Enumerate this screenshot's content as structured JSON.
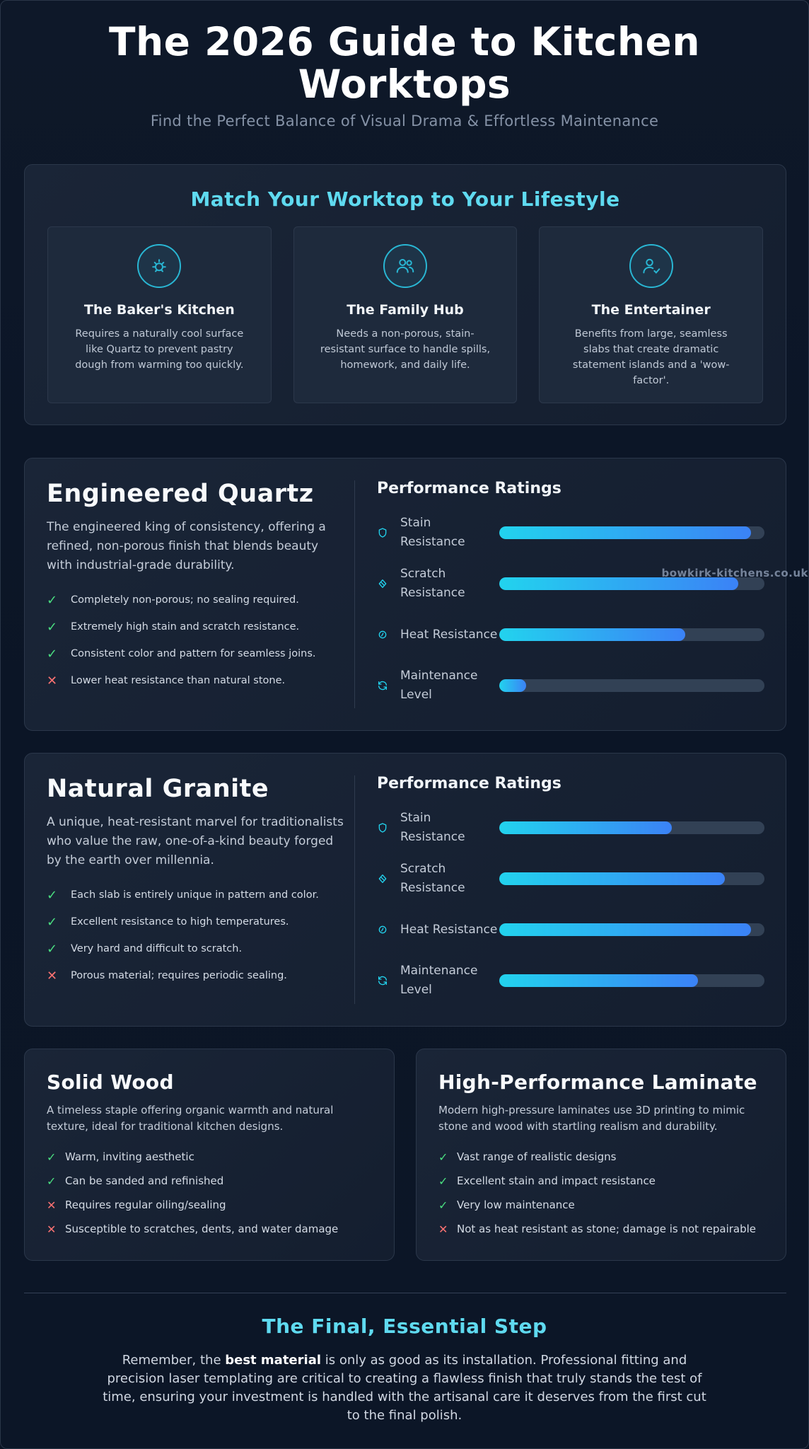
{
  "header": {
    "title": "The 2026 Guide to Kitchen Worktops",
    "subtitle": "Find the Perfect Balance of Visual Drama & Effortless Maintenance"
  },
  "lifestyle": {
    "title": "Match Your Worktop to Your Lifestyle",
    "cards": [
      {
        "icon": "sun-icon",
        "title": "The Baker's Kitchen",
        "desc": "Requires a naturally cool surface like Quartz to prevent pastry dough from warming too quickly."
      },
      {
        "icon": "users-icon",
        "title": "The Family Hub",
        "desc": "Needs a non-porous, stain-resistant surface to handle spills, homework, and daily life."
      },
      {
        "icon": "user-check-icon",
        "title": "The Entertainer",
        "desc": "Benefits from large, seamless slabs that create dramatic statement islands and a 'wow-factor'."
      }
    ]
  },
  "quartz": {
    "title": "Engineered Quartz",
    "desc": "The engineered king of consistency, offering a refined, non-porous finish that blends beauty with industrial-grade durability.",
    "bullets": [
      {
        "ok": true,
        "text": "Completely non-porous; no sealing required."
      },
      {
        "ok": true,
        "text": "Extremely high stain and scratch resistance."
      },
      {
        "ok": true,
        "text": "Consistent color and pattern for seamless joins."
      },
      {
        "ok": false,
        "text": "Lower heat resistance than natural stone."
      }
    ],
    "perf_title": "Performance Ratings",
    "ratings": [
      {
        "icon": "shield-icon",
        "label": "Stain Resistance",
        "value": 95
      },
      {
        "icon": "diamond-icon",
        "label": "Scratch Resistance",
        "value": 90
      },
      {
        "icon": "flame-icon",
        "label": "Heat Resistance",
        "value": 70
      },
      {
        "icon": "refresh-icon",
        "label": "Maintenance Level",
        "value": 10
      }
    ]
  },
  "granite": {
    "title": "Natural Granite",
    "desc": "A unique, heat-resistant marvel for traditionalists who value the raw, one-of-a-kind beauty forged by the earth over millennia.",
    "bullets": [
      {
        "ok": true,
        "text": "Each slab is entirely unique in pattern and color."
      },
      {
        "ok": true,
        "text": "Excellent resistance to high temperatures."
      },
      {
        "ok": true,
        "text": "Very hard and difficult to scratch."
      },
      {
        "ok": false,
        "text": "Porous material; requires periodic sealing."
      }
    ],
    "perf_title": "Performance Ratings",
    "ratings": [
      {
        "icon": "shield-icon",
        "label": "Stain Resistance",
        "value": 65
      },
      {
        "icon": "diamond-icon",
        "label": "Scratch Resistance",
        "value": 85
      },
      {
        "icon": "flame-icon",
        "label": "Heat Resistance",
        "value": 95
      },
      {
        "icon": "refresh-icon",
        "label": "Maintenance Level",
        "value": 75
      }
    ]
  },
  "wood": {
    "title": "Solid Wood",
    "desc": "A timeless staple offering organic warmth and natural texture, ideal for traditional kitchen designs.",
    "bullets": [
      {
        "ok": true,
        "text": "Warm, inviting aesthetic"
      },
      {
        "ok": true,
        "text": "Can be sanded and refinished"
      },
      {
        "ok": false,
        "text": "Requires regular oiling/sealing"
      },
      {
        "ok": false,
        "text": "Susceptible to scratches, dents, and water damage"
      }
    ]
  },
  "laminate": {
    "title": "High-Performance Laminate",
    "desc": "Modern high-pressure laminates use 3D printing to mimic stone and wood with startling realism and durability.",
    "bullets": [
      {
        "ok": true,
        "text": "Vast range of realistic designs"
      },
      {
        "ok": true,
        "text": "Excellent stain and impact resistance"
      },
      {
        "ok": true,
        "text": "Very low maintenance"
      },
      {
        "ok": false,
        "text": "Not as heat resistant as stone; damage is not repairable"
      }
    ]
  },
  "watermark": "bowkirk-kitchens.co.uk",
  "final": {
    "title": "The Final, Essential Step",
    "text_before": "Remember, the ",
    "text_bold": "best material",
    "text_after": " is only as good as its installation. Professional fitting and precision laser templating are critical to creating a flawless finish that truly stands the test of time, ensuring your investment is handled with the artisanal care it deserves from the first cut to the final polish."
  },
  "colors": {
    "accent": "#5fdaf0",
    "check": "#4ade80",
    "cross": "#f87171",
    "bar_start": "#22d3ee",
    "bar_end": "#3b82f6"
  }
}
